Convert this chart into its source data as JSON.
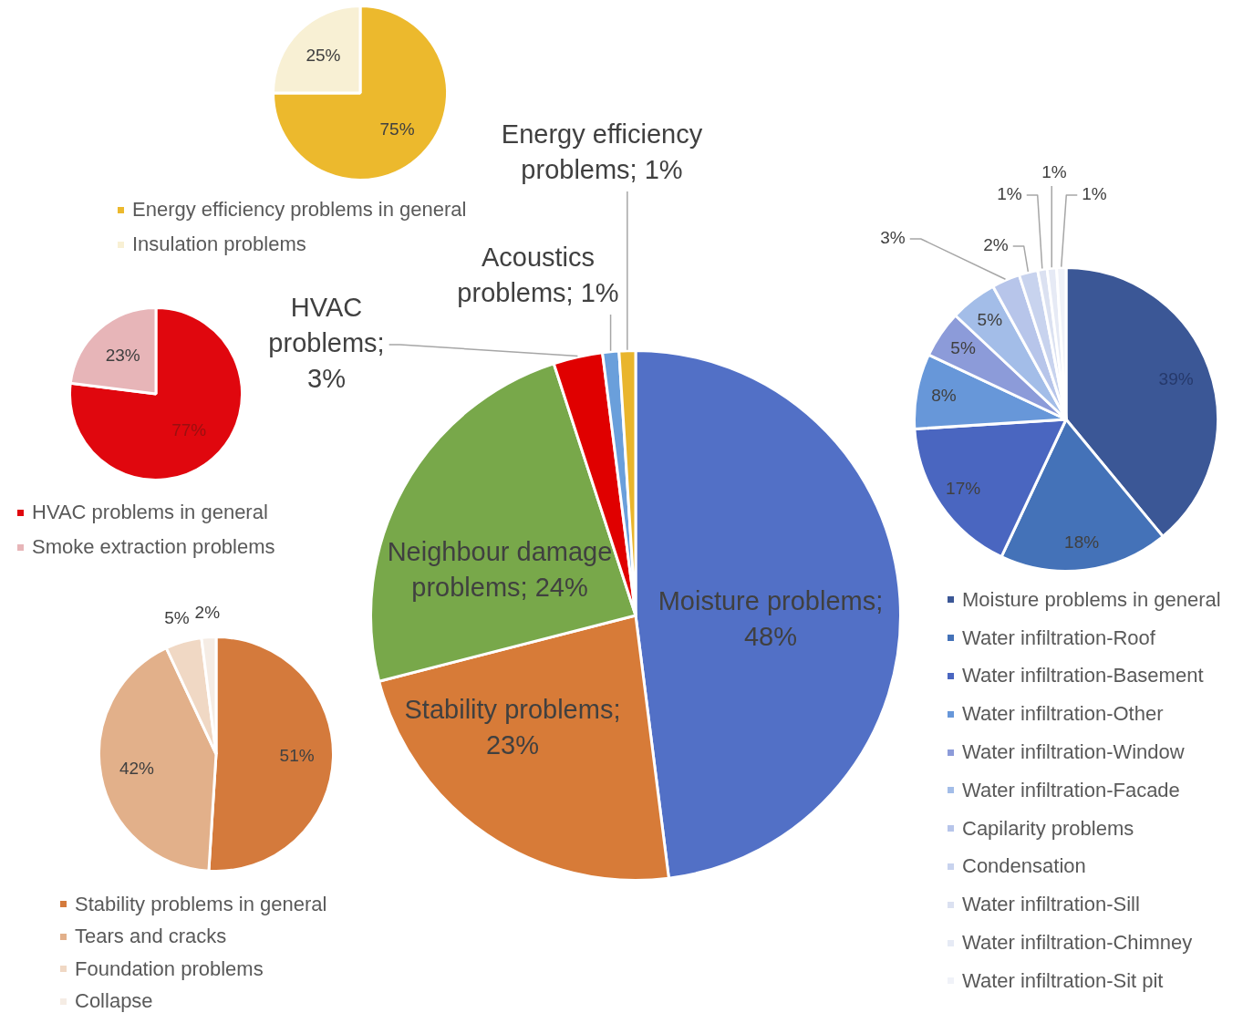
{
  "chart_data": [
    {
      "type": "pie",
      "categories": [
        "Energy efficiency problems in general",
        "Insulation problems"
      ],
      "values": [
        75,
        25
      ],
      "colors": [
        "#ecb92d",
        "#f8f0d4"
      ],
      "value_labels": [
        "75%",
        "25%"
      ],
      "legend": "bottom"
    },
    {
      "type": "pie",
      "categories": [
        "HVAC problems in general",
        "Smoke extraction problems"
      ],
      "values": [
        77,
        23
      ],
      "colors": [
        "#e0070e",
        "#e7b5b8"
      ],
      "value_labels": [
        "77%",
        "23%"
      ],
      "legend": "bottom"
    },
    {
      "type": "pie",
      "categories": [
        "Stability problems in general",
        "Tears and cracks",
        "Foundation problems",
        "Collapse"
      ],
      "values": [
        51,
        42,
        5,
        2
      ],
      "colors": [
        "#d47a3c",
        "#e2b08a",
        "#f0d8c4",
        "#f5ece4"
      ],
      "value_labels": [
        "51%",
        "42%",
        "5%",
        "2%"
      ],
      "legend": "bottom"
    },
    {
      "type": "pie",
      "categories": [
        null,
        null,
        null,
        null,
        null,
        null
      ],
      "values": [
        48,
        23,
        24,
        3,
        1,
        1
      ],
      "colors": [
        "#5270c6",
        "#d77b38",
        "#78a84a",
        "#e00000",
        "#6a9fdb",
        "#e9b52c"
      ],
      "value_labels": [
        "Moisture problems; 48%",
        "Stability problems; 23%",
        "Neighbour damage problems; 24%",
        "HVAC problems; 3%",
        "Acoustics problems; 1%",
        "Energy efficiency problems; 1%"
      ]
    },
    {
      "type": "pie",
      "categories": [
        "Moisture problems in general",
        "Water infiltration-Roof",
        "Water infiltration-Basement",
        "Water infiltration-Other",
        "Water infiltration-Window",
        "Water infiltration-Facade",
        "Capilarity problems",
        "Condensation",
        "Water infiltration-Sill",
        "Water infiltration-Chimney",
        "Water infiltration-Sit pit"
      ],
      "values": [
        39,
        18,
        17,
        8,
        5,
        5,
        3,
        2,
        1,
        1,
        1
      ],
      "colors": [
        "#3b5796",
        "#4472b8",
        "#4a66c0",
        "#6797d9",
        "#8c9bd9",
        "#a3bde8",
        "#b7c5ea",
        "#c8d3ee",
        "#dbe1f1",
        "#e6eaf5",
        "#f0f2f8"
      ],
      "value_labels": [
        "39%",
        "18%",
        "17%",
        "8%",
        "5%",
        "5%",
        "3%",
        "2%",
        "1%",
        "1%",
        "1%"
      ],
      "legend": "bottom"
    }
  ]
}
